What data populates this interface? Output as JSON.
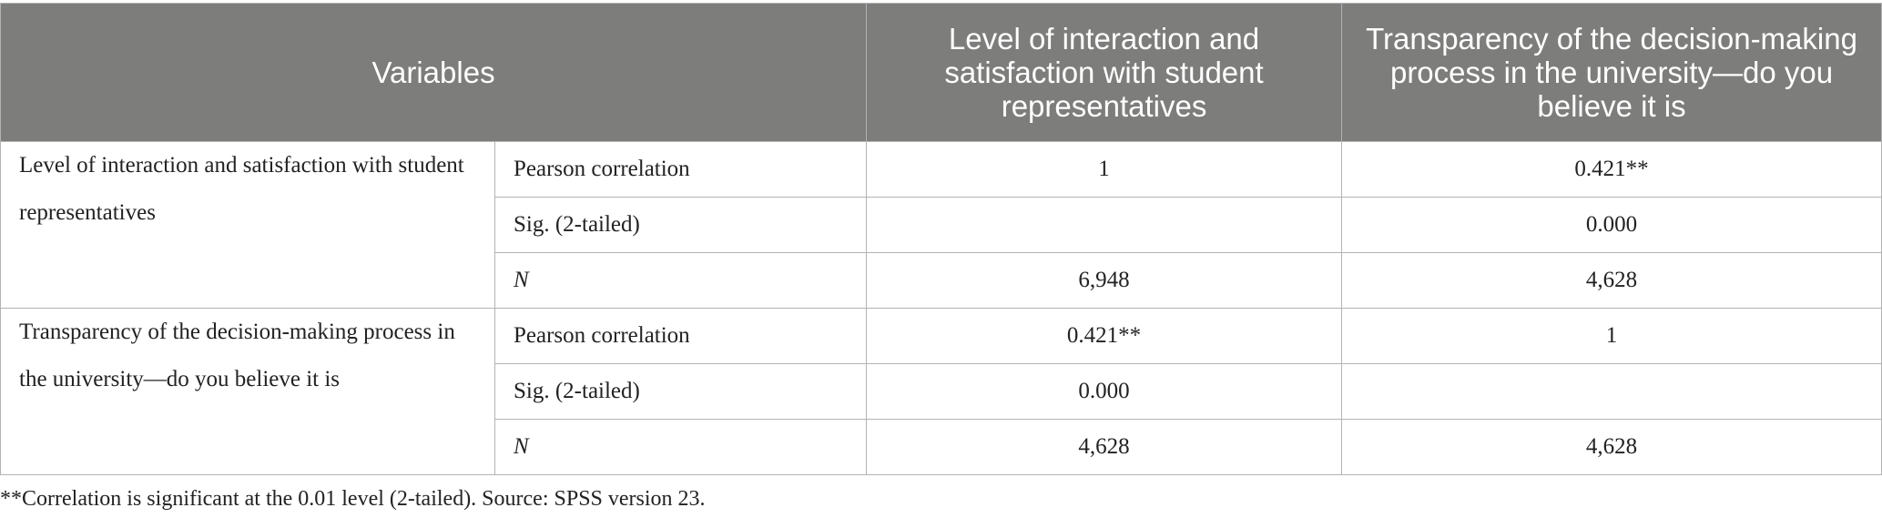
{
  "table": {
    "headers": {
      "variables": "Variables",
      "col1": "Level of interaction and satisfaction with student representatives",
      "col2": "Transparency of the decision-making process in the university—do you believe it is"
    },
    "groups": [
      {
        "variable": "Level of interaction and satisfaction with student representatives",
        "rows": [
          {
            "stat": "Pearson correlation",
            "v1": "1",
            "v2": "0.421**"
          },
          {
            "stat": "Sig. (2-tailed)",
            "v1": "",
            "v2": "0.000"
          },
          {
            "stat": "N",
            "v1": "6,948",
            "v2": "4,628"
          }
        ]
      },
      {
        "variable": "Transparency of the decision-making process in the university—do you believe it is",
        "rows": [
          {
            "stat": "Pearson correlation",
            "v1": "0.421**",
            "v2": "1"
          },
          {
            "stat": "Sig. (2-tailed)",
            "v1": "0.000",
            "v2": ""
          },
          {
            "stat": "N",
            "v1": "4,628",
            "v2": "4,628"
          }
        ]
      }
    ]
  },
  "footnote": "**Correlation is significant at the 0.01 level (2-tailed). Source: SPSS version 23."
}
